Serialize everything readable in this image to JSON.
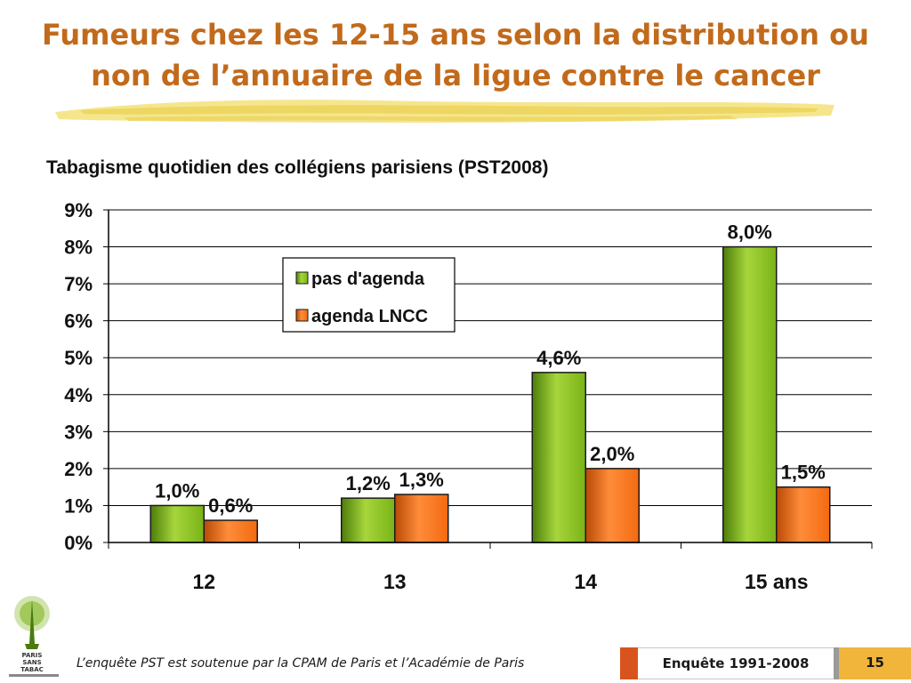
{
  "slide": {
    "title_line1": "Fumeurs chez les 12-15 ans selon la distribution ou",
    "title_line2": "non de l’annuaire de la ligue contre le cancer",
    "footer": "L’enquête PST est soutenue par la CPAM de Paris et l’Académie de Paris",
    "survey_label": "Enquête 1991-2008",
    "page_number": "15",
    "logo_text": [
      "PARIS",
      "SANS",
      "TABAC"
    ],
    "colors": {
      "title": "#c26a1b",
      "series1": "#7ab317",
      "series2": "#f26a10",
      "accent": "#d9531e",
      "page_box": "#f0b53a"
    }
  },
  "chart_data": {
    "type": "bar",
    "title": "Tabagisme quotidien des collégiens parisiens (PST2008)",
    "categories": [
      "12",
      "13",
      "14",
      "15 ans"
    ],
    "series": [
      {
        "name": "pas d'agenda",
        "color": "#7ab317",
        "values": [
          1.0,
          1.2,
          4.6,
          8.0
        ],
        "labels": [
          "1,0%",
          "1,2%",
          "4,6%",
          "8,0%"
        ]
      },
      {
        "name": "agenda LNCC",
        "color": "#f26a10",
        "values": [
          0.6,
          1.3,
          2.0,
          1.5
        ],
        "labels": [
          "0,6%",
          "1,3%",
          "2,0%",
          "1,5%"
        ]
      }
    ],
    "ylim": [
      0,
      9
    ],
    "yticks": [
      "0%",
      "1%",
      "2%",
      "3%",
      "4%",
      "5%",
      "6%",
      "7%",
      "8%",
      "9%"
    ],
    "grid": true,
    "legend_position": "upper-center"
  }
}
